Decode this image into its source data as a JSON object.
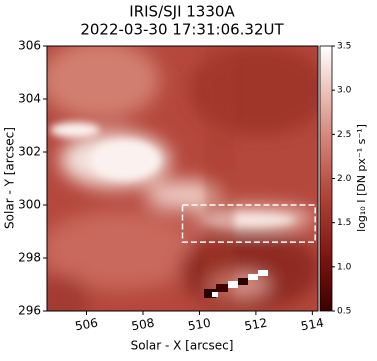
{
  "chart_data": {
    "type": "image",
    "title": [
      "IRIS/SJI 1330A",
      "2022-03-30 17:31:06.32UT"
    ],
    "xlabel": "Solar - X [arcsec]",
    "ylabel": "Solar - Y [arcsec]",
    "xlim": [
      504.6,
      514.2
    ],
    "ylim": [
      296,
      306
    ],
    "xticks": [
      506,
      508,
      510,
      512,
      514
    ],
    "yticks": [
      296,
      298,
      300,
      302,
      304,
      306
    ],
    "colorbar": {
      "label": "log₁₀ I [DN px⁻¹ s⁻¹]",
      "lim": [
        0.5,
        3.5
      ],
      "ticks": [
        0.5,
        {
          "value": 1,
          "label": "1.0"
        },
        1.5,
        {
          "value": 2,
          "label": "2.0"
        },
        2.5,
        {
          "value": 3,
          "label": "3.0"
        },
        3.5
      ]
    },
    "box": {
      "x": [
        509.4,
        514.1
      ],
      "y": [
        298.6,
        300
      ]
    }
  }
}
